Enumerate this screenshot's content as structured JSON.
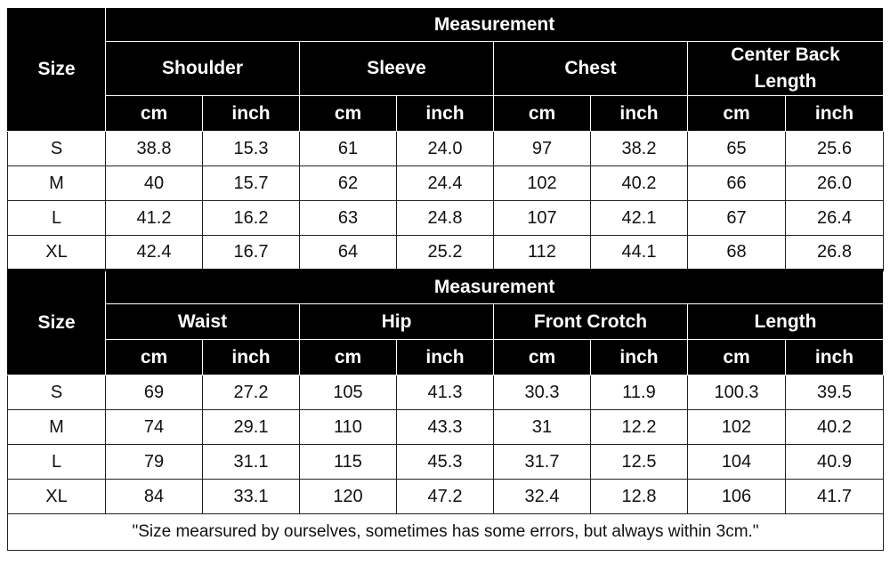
{
  "top_table": {
    "size_label": "Size",
    "measurement_label": "Measurement",
    "groups": [
      "Shoulder",
      "Sleeve",
      "Chest",
      "Center Back Length"
    ],
    "units": [
      "cm",
      "inch"
    ],
    "rows": [
      {
        "size": "S",
        "values": [
          "38.8",
          "15.3",
          "61",
          "24.0",
          "97",
          "38.2",
          "65",
          "25.6"
        ]
      },
      {
        "size": "M",
        "values": [
          "40",
          "15.7",
          "62",
          "24.4",
          "102",
          "40.2",
          "66",
          "26.0"
        ]
      },
      {
        "size": "L",
        "values": [
          "41.2",
          "16.2",
          "63",
          "24.8",
          "107",
          "42.1",
          "67",
          "26.4"
        ]
      },
      {
        "size": "XL",
        "values": [
          "42.4",
          "16.7",
          "64",
          "25.2",
          "112",
          "44.1",
          "68",
          "26.8"
        ]
      }
    ]
  },
  "bottom_table": {
    "size_label": "Size",
    "measurement_label": "Measurement",
    "groups": [
      "Waist",
      "Hip",
      "Front Crotch",
      "Length"
    ],
    "units": [
      "cm",
      "inch"
    ],
    "rows": [
      {
        "size": "S",
        "values": [
          "69",
          "27.2",
          "105",
          "41.3",
          "30.3",
          "11.9",
          "100.3",
          "39.5"
        ]
      },
      {
        "size": "M",
        "values": [
          "74",
          "29.1",
          "110",
          "43.3",
          "31",
          "12.2",
          "102",
          "40.2"
        ]
      },
      {
        "size": "L",
        "values": [
          "79",
          "31.1",
          "115",
          "45.3",
          "31.7",
          "12.5",
          "104",
          "40.9"
        ]
      },
      {
        "size": "XL",
        "values": [
          "84",
          "33.1",
          "120",
          "47.2",
          "32.4",
          "12.8",
          "106",
          "41.7"
        ]
      }
    ]
  },
  "footnote": "\"Size mearsured by ourselves, sometimes has some errors, but always within 3cm.\""
}
